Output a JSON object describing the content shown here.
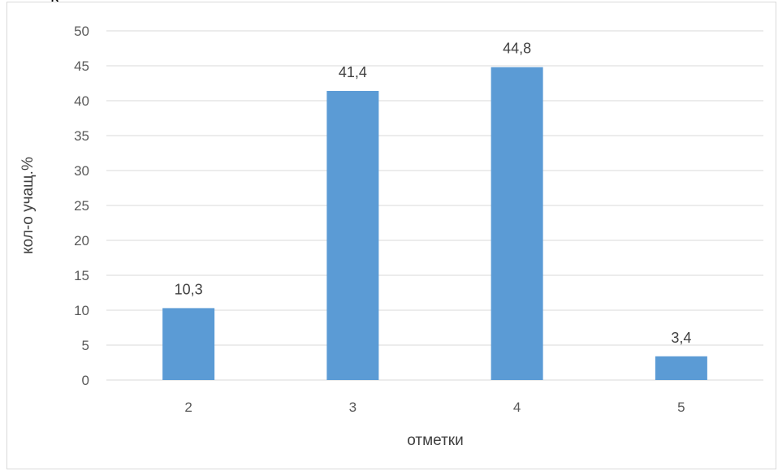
{
  "stray_text": "р",
  "colors": {
    "bar": "#5b9bd5",
    "grid": "#d9d9d9",
    "tick_text": "#595959",
    "label_text": "#404040",
    "border": "#d9d9d9"
  },
  "chart_data": {
    "type": "bar",
    "title": "",
    "xlabel": "отметки",
    "ylabel": "кол-о учащ.%",
    "categories": [
      "2",
      "3",
      "4",
      "5"
    ],
    "values": [
      10.3,
      41.4,
      44.8,
      3.4
    ],
    "data_labels": [
      "10,3",
      "41,4",
      "44,8",
      "3,4"
    ],
    "ylim": [
      0,
      50
    ],
    "yticks": [
      0,
      5,
      10,
      15,
      20,
      25,
      30,
      35,
      40,
      45,
      50
    ],
    "grid": true,
    "legend": "none"
  }
}
